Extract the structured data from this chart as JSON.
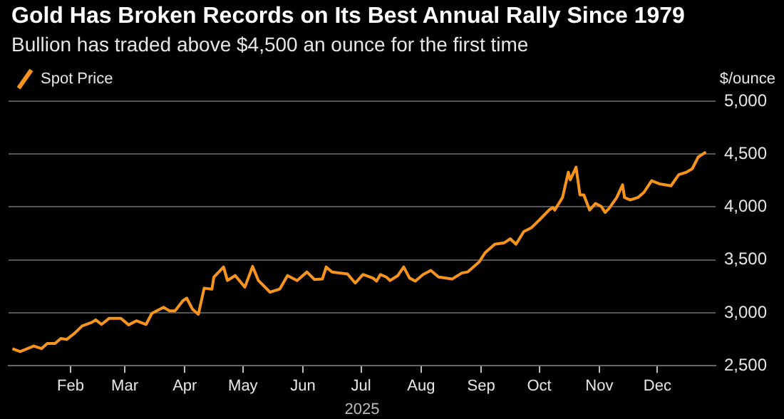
{
  "chart_data": {
    "type": "line",
    "title": "Gold Has Broken Records on Its Best Annual Rally Since 1979",
    "subtitle": "Bullion has traded above $4,500 an ounce for the first time",
    "ylabel": "$/ounce",
    "xlabel": "2025",
    "x": [
      "2025-01-02",
      "2025-01-06",
      "2025-01-13",
      "2025-01-17",
      "2025-01-20",
      "2025-01-24",
      "2025-01-27",
      "2025-01-30",
      "2025-02-03",
      "2025-02-07",
      "2025-02-12",
      "2025-02-14",
      "2025-02-17",
      "2025-02-21",
      "2025-02-27",
      "2025-03-03",
      "2025-03-07",
      "2025-03-12",
      "2025-03-15",
      "2025-03-21",
      "2025-03-24",
      "2025-03-27",
      "2025-03-31",
      "2025-04-02",
      "2025-04-05",
      "2025-04-08",
      "2025-04-11",
      "2025-04-15",
      "2025-04-16",
      "2025-04-21",
      "2025-04-23",
      "2025-04-27",
      "2025-05-02",
      "2025-05-06",
      "2025-05-09",
      "2025-05-15",
      "2025-05-20",
      "2025-05-24",
      "2025-05-29",
      "2025-06-03",
      "2025-06-07",
      "2025-06-11",
      "2025-06-13",
      "2025-06-16",
      "2025-06-24",
      "2025-06-28",
      "2025-07-02",
      "2025-07-07",
      "2025-07-09",
      "2025-07-11",
      "2025-07-14",
      "2025-07-16",
      "2025-07-20",
      "2025-07-23",
      "2025-07-26",
      "2025-07-29",
      "2025-08-02",
      "2025-08-06",
      "2025-08-10",
      "2025-08-17",
      "2025-08-22",
      "2025-08-25",
      "2025-08-31",
      "2025-09-03",
      "2025-09-08",
      "2025-09-13",
      "2025-09-16",
      "2025-09-19",
      "2025-09-23",
      "2025-09-27",
      "2025-10-01",
      "2025-10-06",
      "2025-10-08",
      "2025-10-09",
      "2025-10-13",
      "2025-10-16",
      "2025-10-17",
      "2025-10-20",
      "2025-10-22",
      "2025-10-24",
      "2025-10-27",
      "2025-10-30",
      "2025-11-02",
      "2025-11-04",
      "2025-11-06",
      "2025-11-10",
      "2025-11-13",
      "2025-11-14",
      "2025-11-17",
      "2025-11-21",
      "2025-11-24",
      "2025-11-28",
      "2025-12-02",
      "2025-12-08",
      "2025-12-12",
      "2025-12-16",
      "2025-12-19",
      "2025-12-22",
      "2025-12-26"
    ],
    "series": [
      {
        "name": "Spot Price",
        "color": "#f7941d",
        "values": [
          2660,
          2633,
          2686,
          2662,
          2710,
          2710,
          2757,
          2748,
          2805,
          2876,
          2910,
          2933,
          2890,
          2948,
          2948,
          2886,
          2924,
          2890,
          2995,
          3052,
          3019,
          3019,
          3114,
          3138,
          3033,
          2986,
          3233,
          3224,
          3338,
          3433,
          3305,
          3352,
          3243,
          3438,
          3305,
          3195,
          3224,
          3352,
          3305,
          3386,
          3314,
          3319,
          3433,
          3386,
          3367,
          3281,
          3362,
          3329,
          3300,
          3362,
          3338,
          3305,
          3352,
          3433,
          3329,
          3300,
          3362,
          3400,
          3338,
          3319,
          3376,
          3386,
          3481,
          3567,
          3648,
          3662,
          3700,
          3648,
          3767,
          3805,
          3876,
          3971,
          3995,
          3971,
          4090,
          4329,
          4257,
          4376,
          4114,
          4114,
          3971,
          4033,
          4005,
          3948,
          3986,
          4090,
          4210,
          4090,
          4067,
          4090,
          4138,
          4248,
          4219,
          4200,
          4305,
          4329,
          4362,
          4471,
          4519
        ]
      }
    ],
    "xlim": [
      "2024-12-31",
      "2025-12-31"
    ],
    "xticks": [
      {
        "value": "2025-02-01",
        "label": "Feb"
      },
      {
        "value": "2025-03-01",
        "label": "Mar"
      },
      {
        "value": "2025-04-01",
        "label": "Apr"
      },
      {
        "value": "2025-05-01",
        "label": "May"
      },
      {
        "value": "2025-06-01",
        "label": "Jun"
      },
      {
        "value": "2025-07-01",
        "label": "Jul"
      },
      {
        "value": "2025-08-01",
        "label": "Aug"
      },
      {
        "value": "2025-09-01",
        "label": "Sep"
      },
      {
        "value": "2025-10-01",
        "label": "Oct"
      },
      {
        "value": "2025-11-01",
        "label": "Nov"
      },
      {
        "value": "2025-12-01",
        "label": "Dec"
      }
    ],
    "ylim": [
      2500,
      5000
    ],
    "yticks": [
      {
        "value": 2500,
        "label": "2,500"
      },
      {
        "value": 3000,
        "label": "3,000"
      },
      {
        "value": 3500,
        "label": "3,500"
      },
      {
        "value": 4000,
        "label": "4,000"
      },
      {
        "value": 4500,
        "label": "4,500"
      },
      {
        "value": 5000,
        "label": "5,000"
      }
    ],
    "grid": "y",
    "legend": "top left",
    "marker": "none",
    "line_style": "solid"
  }
}
